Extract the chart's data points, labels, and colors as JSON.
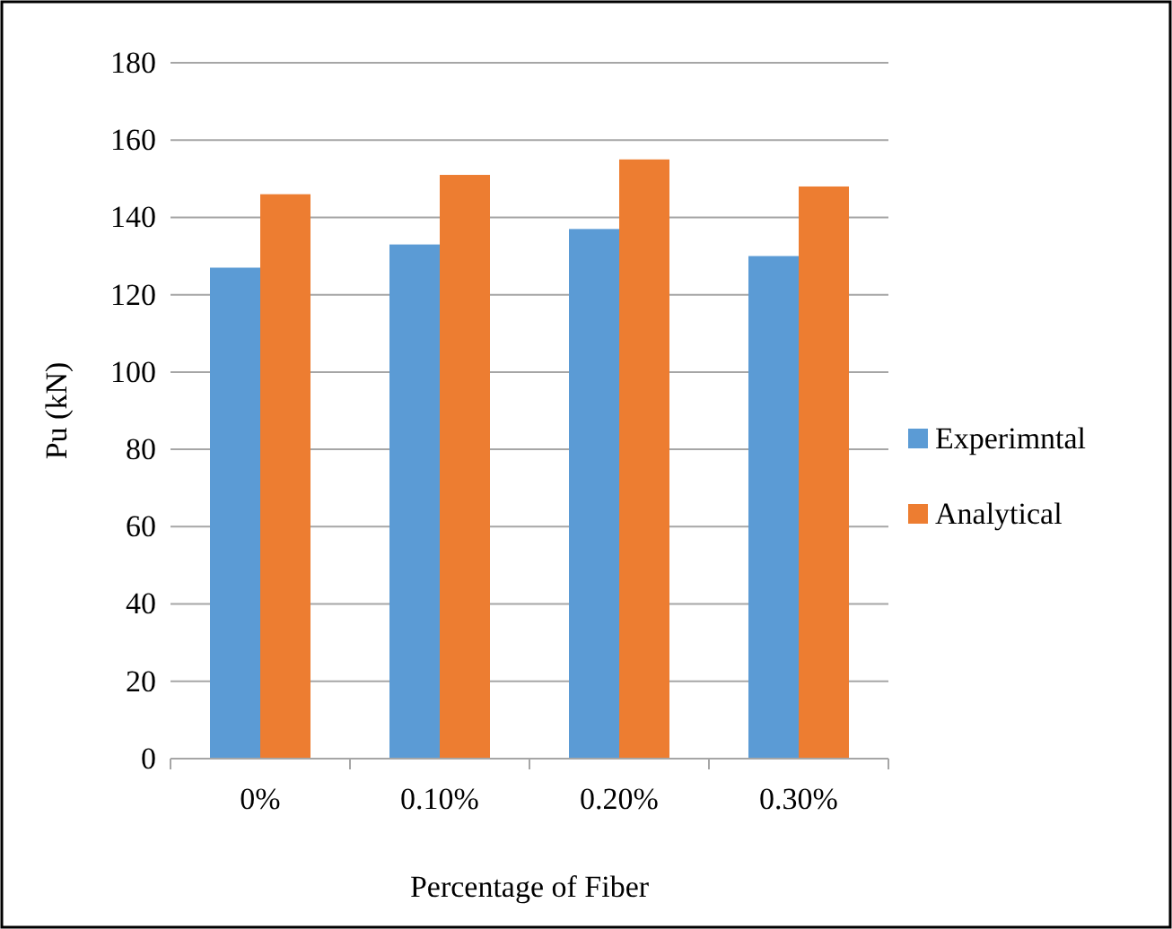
{
  "chart_data": {
    "type": "bar",
    "xlabel": "Percentage of Fiber",
    "ylabel": "Pu (kN)",
    "categories": [
      "0%",
      "0.10%",
      "0.20%",
      "0.30%"
    ],
    "series": [
      {
        "name": "Experimntal",
        "color": "#5b9bd5",
        "values": [
          127,
          133,
          137,
          130
        ]
      },
      {
        "name": "Analytical",
        "color": "#ed7d31",
        "values": [
          146,
          151,
          155,
          148
        ]
      }
    ],
    "ylim": [
      0,
      180
    ],
    "yticks": [
      0,
      20,
      40,
      60,
      80,
      100,
      120,
      140,
      160,
      180
    ],
    "grid": "y",
    "legend": "right"
  }
}
